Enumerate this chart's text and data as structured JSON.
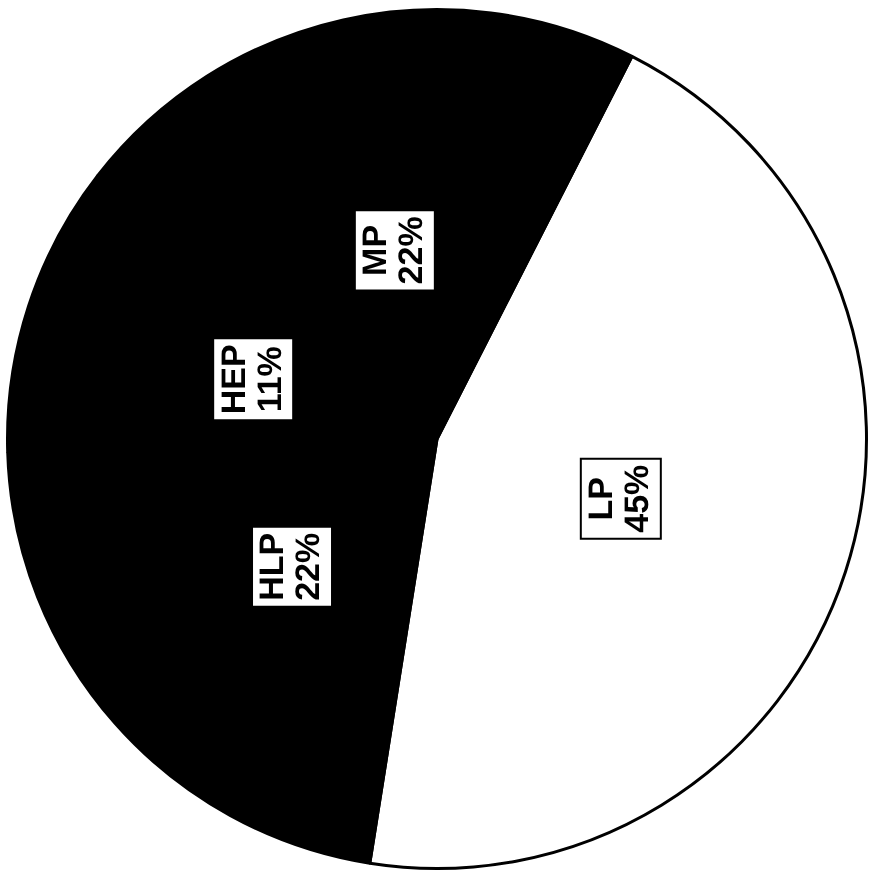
{
  "chart_data": {
    "type": "pie",
    "categories": [
      "LP",
      "HLP",
      "HEP",
      "MP"
    ],
    "values": [
      45,
      22,
      11,
      22
    ],
    "value_labels": [
      "45%",
      "22%",
      "11%",
      "22%"
    ],
    "colors": [
      "#ffffff",
      "#000000",
      "#000000",
      "#000000"
    ],
    "legend": false
  }
}
